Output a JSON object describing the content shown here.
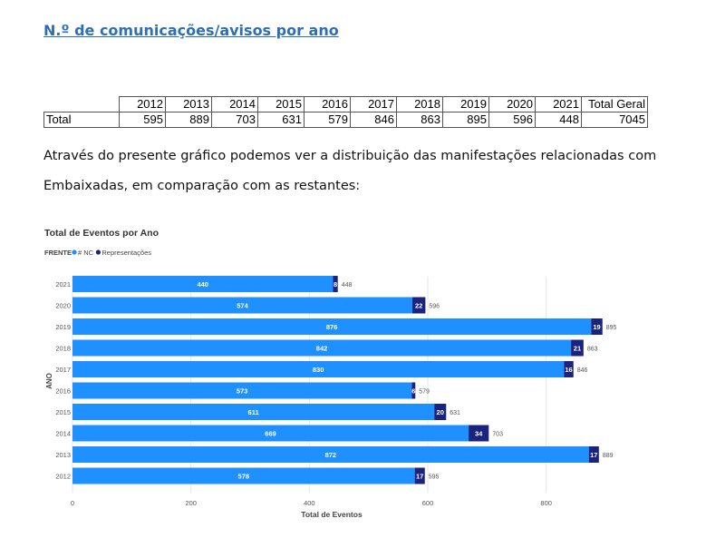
{
  "heading": "N.º de comunicações/avisos por ano",
  "table": {
    "header": [
      "2012",
      "2013",
      "2014",
      "2015",
      "2016",
      "2017",
      "2018",
      "2019",
      "2020",
      "2021",
      "Total Geral"
    ],
    "row_label": "Total",
    "values": [
      "595",
      "889",
      "703",
      "631",
      "579",
      "846",
      "863",
      "895",
      "596",
      "448",
      "7045"
    ]
  },
  "paragraph": {
    "line1": "Através do presente gráfico podemos ver a distribuição das manifestações relacionadas com",
    "line2": "Embaixadas, em comparação com as restantes:"
  },
  "chart_data": {
    "type": "bar",
    "orientation": "horizontal",
    "stacked": true,
    "title": "Total de Eventos por Ano",
    "legend_title": "FRENTE",
    "legend_position": "top-left",
    "xlabel": "Total de Eventos",
    "ylabel": "ANO",
    "xlim": [
      0,
      900
    ],
    "xticks": [
      "0",
      "200",
      "400",
      "600",
      "800"
    ],
    "categories": [
      "2021",
      "2020",
      "2019",
      "2018",
      "2017",
      "2016",
      "2015",
      "2014",
      "2013",
      "2012"
    ],
    "series": [
      {
        "name": "# NC",
        "color": "#1e90ff",
        "values": [
          440,
          574,
          876,
          842,
          830,
          573,
          611,
          669,
          872,
          578
        ]
      },
      {
        "name": "Representações",
        "color": "#1a237e",
        "values": [
          8,
          22,
          19,
          21,
          16,
          6,
          20,
          34,
          17,
          17
        ]
      }
    ],
    "totals": [
      448,
      596,
      895,
      863,
      846,
      579,
      631,
      703,
      889,
      595
    ]
  }
}
